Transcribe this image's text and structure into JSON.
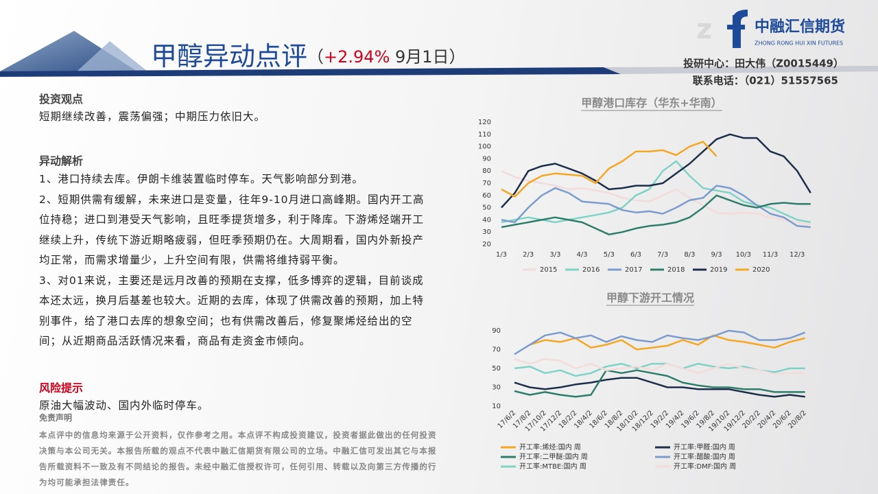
{
  "logo": {
    "name": "中融汇信期货",
    "english": "ZHONG RONG HUI XIN FUTURES"
  },
  "header": {
    "title": "甲醇异动点评",
    "open": "（",
    "change": "+2.94%",
    "date": " 9月1日",
    "close": "）",
    "contact": [
      "投研中心：田大伟（Z0015449）",
      "联系电话：（021）51557565"
    ]
  },
  "view": {
    "heading": "投资观点",
    "text": "短期继续改善，震荡偏强；中期压力依旧大。"
  },
  "analysis": {
    "heading": "异动解析",
    "paragraphs": [
      "1、港口持续去库。伊朗卡维装置临时停车。天气影响部分到港。",
      "2、短期供需有缓解，未来进口是变量，往年9-10月进口高峰期。国内开工高位持稳；进口到港受天气影响，且旺季提货增多，利于降库。下游烯烃端开工继续上升，传统下游近期略疲弱，但旺季预期仍在。大周期看，国内外新投产均正常，而需求增量少，上升空间有限，供需将维持弱平衡。",
      "3、对01来说，主要还是远月改善的预期在支撑，低多博弈的逻辑，目前谈成本还太远，换月后基差也较大。近期的去库，体现了供需改善的预期，加上特别事件，给了港口去库的想象空间；也有供需改善后，修复聚烯烃给出的空间；从近期商品活跃情况来看，商品有走资金市倾向。"
    ]
  },
  "risk": {
    "heading": "风险提示",
    "text": "原油大幅波动、国内外临时停车。"
  },
  "disclaimer": {
    "heading": "免责声明",
    "text": "本点评中的信息均来源于公开资料，仅作参考之用。本点评不构成投资建议，投资者据此做出的任何投资决策与本公司无关。本报告所载的观点不代表中融汇信期货有限公司的立场。中融汇信可发出其它与本报告所载资料不一致及有不同结论的报告。未经中融汇信授权许可，任何引用、转载以及向第三方传播的行为均可能承担法律责任。"
  },
  "chart_data": [
    {
      "type": "line",
      "title": "甲醇港口库存（华东+华南）",
      "categories": [
        "1/3",
        null,
        "2/3",
        null,
        "3/3",
        null,
        "4/3",
        null,
        "5/3",
        null,
        "6/3",
        null,
        "7/3",
        null,
        "8/3",
        null,
        "9/3",
        null,
        "10/3",
        null,
        "11/3",
        null,
        "12/3",
        null
      ],
      "ylim": [
        20,
        120
      ],
      "yticks": [
        20,
        30,
        40,
        50,
        60,
        70,
        80,
        90,
        100,
        110,
        120
      ],
      "series": [
        {
          "name": "2015",
          "color": "#f2dcdc",
          "values": [
            80,
            75,
            72,
            70,
            68,
            65,
            66,
            64,
            62,
            58,
            56,
            55,
            60,
            65,
            58,
            52,
            46,
            45,
            46,
            45,
            42,
            40,
            38,
            36
          ]
        },
        {
          "name": "2016",
          "color": "#7fd3c4",
          "values": [
            38,
            40,
            42,
            40,
            38,
            40,
            42,
            44,
            46,
            50,
            60,
            65,
            80,
            88,
            76,
            66,
            64,
            62,
            55,
            52,
            50,
            45,
            40,
            38
          ]
        },
        {
          "name": "2017",
          "color": "#7b9ccc",
          "values": [
            40,
            38,
            50,
            60,
            66,
            62,
            55,
            54,
            53,
            48,
            46,
            47,
            45,
            50,
            56,
            58,
            68,
            66,
            60,
            52,
            45,
            42,
            35,
            34
          ]
        },
        {
          "name": "2018",
          "color": "#2e7d6a",
          "values": [
            34,
            36,
            38,
            40,
            42,
            40,
            38,
            33,
            28,
            30,
            33,
            35,
            36,
            38,
            42,
            50,
            60,
            56,
            52,
            50,
            53,
            54,
            53,
            53
          ]
        },
        {
          "name": "2019",
          "color": "#1c2e4a",
          "values": [
            50,
            62,
            80,
            84,
            86,
            82,
            78,
            72,
            65,
            66,
            68,
            68,
            70,
            78,
            86,
            96,
            106,
            110,
            107,
            107,
            96,
            92,
            80,
            62
          ]
        },
        {
          "name": "2020",
          "color": "#f5a623",
          "values": [
            65,
            59,
            70,
            76,
            78,
            77,
            76,
            70,
            82,
            88,
            96,
            96,
            97,
            93,
            100,
            104,
            92,
            null,
            null,
            null,
            null,
            null,
            null,
            null
          ]
        }
      ]
    },
    {
      "type": "line",
      "title": "甲醇下游开工情况",
      "categories": [
        "17/6/2",
        "17/8/2",
        "17/10/2",
        "17/12/2",
        "18/2/2",
        "18/4/2",
        "18/6/2",
        "18/8/2",
        "18/10/2",
        "18/12/2",
        "19/2/2",
        "19/4/2",
        "19/6/2",
        "19/8/2",
        "19/10/2",
        "19/12/2",
        "20/2/2",
        "20/4/2",
        "20/6/2",
        "20/8/2"
      ],
      "ylim": [
        10,
        95
      ],
      "yticks": [
        10,
        30,
        50,
        70,
        90
      ],
      "series": [
        {
          "name": "开工率:烯烃:国内 周",
          "color": "#f5a623",
          "values": [
            null,
            75,
            80,
            78,
            82,
            72,
            75,
            80,
            70,
            72,
            74,
            80,
            75,
            85,
            80,
            78,
            75,
            72,
            78,
            82
          ]
        },
        {
          "name": "开工率:甲醛:国内 周",
          "color": "#1c2e4a",
          "values": [
            35,
            30,
            28,
            30,
            33,
            35,
            38,
            40,
            40,
            35,
            30,
            30,
            28,
            28,
            28,
            25,
            22,
            20,
            22,
            20
          ]
        },
        {
          "name": "开工率:二甲醚:国内 周",
          "color": "#2e7d6a",
          "values": [
            26,
            22,
            25,
            22,
            20,
            22,
            48,
            45,
            48,
            45,
            42,
            35,
            32,
            30,
            30,
            28,
            28,
            25,
            25,
            25
          ]
        },
        {
          "name": "开工率:醋酸:国内 周",
          "color": "#7b9ccc",
          "values": [
            65,
            75,
            85,
            88,
            82,
            85,
            78,
            84,
            80,
            78,
            85,
            82,
            80,
            84,
            90,
            88,
            80,
            80,
            82,
            88
          ]
        },
        {
          "name": "开工率:MTBE:国内 周",
          "color": "#7fd3c4",
          "values": [
            50,
            52,
            45,
            48,
            42,
            45,
            52,
            55,
            50,
            55,
            55,
            50,
            55,
            52,
            50,
            52,
            48,
            46,
            50,
            50
          ]
        },
        {
          "name": "开工率:DMF:国内 周",
          "color": "#f2dcdc",
          "values": [
            60,
            55,
            60,
            58,
            50,
            55,
            48,
            50,
            52,
            48,
            55,
            50,
            45,
            50,
            55,
            50,
            48,
            44,
            45,
            45
          ]
        }
      ]
    }
  ]
}
